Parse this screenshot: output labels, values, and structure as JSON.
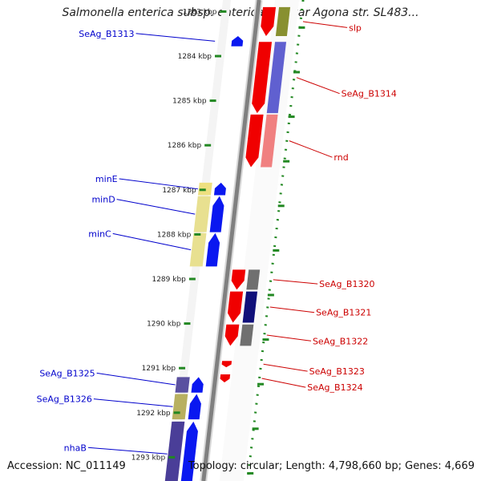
{
  "title": "Salmonella enterica subsp. enterica serovar Agona str. SL483...",
  "footer": {
    "accession": "Accession: NC_011149",
    "summary": "Topology: circular; Length: 4,798,660 bp; Genes: 4,669"
  },
  "colors": {
    "forward_label": "#0000cc",
    "reverse_label": "#cc0000",
    "backbone": "#808080",
    "tick": "#228822"
  },
  "scale": {
    "unit": "kbp",
    "ticks": [
      {
        "kbp": 1283,
        "label": "1283 kbp"
      },
      {
        "kbp": 1284,
        "label": "1284 kbp"
      },
      {
        "kbp": 1285,
        "label": "1285 kbp"
      },
      {
        "kbp": 1286,
        "label": "1286 kbp"
      },
      {
        "kbp": 1287,
        "label": "1287 kbp"
      },
      {
        "kbp": 1288,
        "label": "1288 kbp"
      },
      {
        "kbp": 1289,
        "label": "1289 kbp"
      },
      {
        "kbp": 1290,
        "label": "1290 kbp"
      },
      {
        "kbp": 1291,
        "label": "1291 kbp"
      },
      {
        "kbp": 1292,
        "label": "1292 kbp"
      },
      {
        "kbp": 1293,
        "label": "1293 kbp"
      }
    ]
  },
  "forward_labels": [
    {
      "id": "seag-b1313",
      "text": "SeAg_B1313",
      "kbp": 1283.6
    },
    {
      "id": "mine",
      "text": "minE",
      "kbp": 1286.86
    },
    {
      "id": "mind",
      "text": "minD",
      "kbp": 1287.32
    },
    {
      "id": "minc",
      "text": "minC",
      "kbp": 1288.09
    },
    {
      "id": "seag-b1325",
      "text": "SeAg_B1325",
      "kbp": 1291.22
    },
    {
      "id": "seag-b1326",
      "text": "SeAg_B1326",
      "kbp": 1291.8
    },
    {
      "id": "nhab",
      "text": "nhaB",
      "kbp": 1292.89
    }
  ],
  "reverse_labels": [
    {
      "id": "slp",
      "text": "slp",
      "kbp": 1283.36
    },
    {
      "id": "seag-b1314",
      "text": "SeAg_B1314",
      "kbp": 1284.84
    },
    {
      "id": "rnd",
      "text": "rnd",
      "kbp": 1286.27
    },
    {
      "id": "seag-b1320",
      "text": "SeAg_B1320",
      "kbp": 1289.11
    },
    {
      "id": "seag-b1321",
      "text": "SeAg_B1321",
      "kbp": 1289.75
    },
    {
      "id": "seag-b1322",
      "text": "SeAg_B1322",
      "kbp": 1290.39
    },
    {
      "id": "seag-b1323",
      "text": "SeAg_B1323",
      "kbp": 1291.07
    },
    {
      "id": "seag-b1324",
      "text": "SeAg_B1324",
      "kbp": 1291.43
    }
  ],
  "forward_genes": [
    {
      "id": "seag-b1313",
      "start": 1283.55,
      "end": 1283.78
    },
    {
      "id": "mine",
      "start": 1286.84,
      "end": 1287.12
    },
    {
      "id": "mind",
      "start": 1287.14,
      "end": 1287.95
    },
    {
      "id": "minc",
      "start": 1287.97,
      "end": 1288.72
    },
    {
      "id": "seag-b1325",
      "start": 1291.2,
      "end": 1291.55
    },
    {
      "id": "seag-b1326",
      "start": 1291.58,
      "end": 1292.15
    },
    {
      "id": "nhab",
      "start": 1292.2,
      "end": 1293.65
    }
  ],
  "reverse_genes": [
    {
      "id": "slp",
      "start": 1282.9,
      "end": 1283.55
    },
    {
      "id": "seag-b1314",
      "start": 1283.68,
      "end": 1285.28
    },
    {
      "id": "rnd",
      "start": 1285.31,
      "end": 1286.49
    },
    {
      "id": "seag-b1320",
      "start": 1288.79,
      "end": 1289.24
    },
    {
      "id": "seag-b1321",
      "start": 1289.28,
      "end": 1289.98
    },
    {
      "id": "seag-b1322",
      "start": 1290.02,
      "end": 1290.5
    },
    {
      "id": "seag-b1323",
      "start": 1290.84,
      "end": 1290.98
    },
    {
      "id": "seag-b1324",
      "start": 1291.14,
      "end": 1291.32
    }
  ],
  "feature_tracks": [
    {
      "name": "cds",
      "color": "#d8d8d8"
    },
    {
      "name": "orf",
      "color": "#808080"
    }
  ]
}
